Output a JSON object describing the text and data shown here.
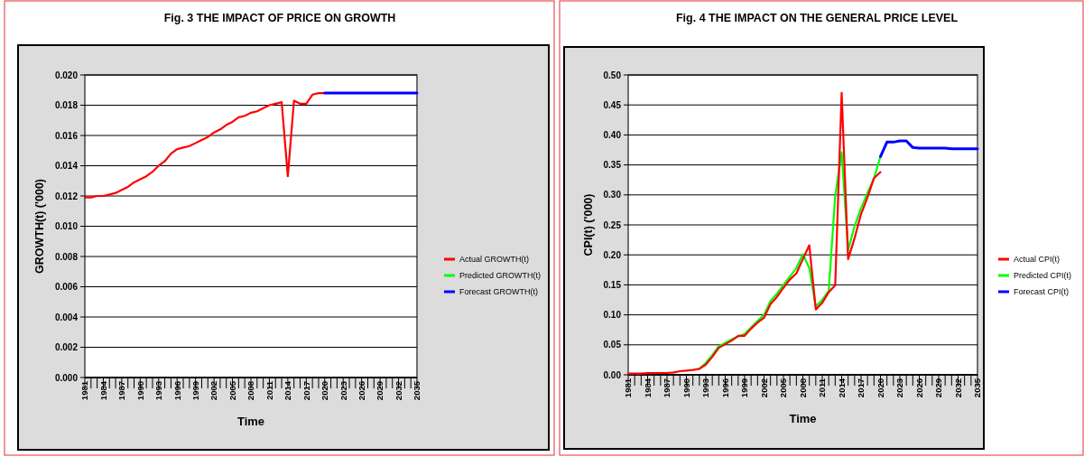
{
  "chart_data": [
    {
      "type": "line",
      "title": "Fig. 3  THE IMPACT OF PRICE ON GROWTH",
      "xlabel": "Time",
      "ylabel": "GROWTH(t) ('000)",
      "categories": [
        "1981",
        null,
        null,
        "1984",
        null,
        null,
        "1987",
        null,
        null,
        "1990",
        null,
        null,
        "1993",
        null,
        null,
        "1996",
        null,
        null,
        "1999",
        null,
        null,
        "2002",
        null,
        null,
        "2005",
        null,
        null,
        "2008",
        null,
        null,
        "2011",
        null,
        null,
        "2014",
        null,
        null,
        "2017",
        null,
        null,
        "2020",
        null,
        null,
        "2023",
        null,
        null,
        "2026",
        null,
        null,
        "2029",
        null,
        null,
        "2032",
        null,
        null,
        "2035"
      ],
      "series": [
        {
          "name": "Actual GROWTH(t)",
          "color": "#ff0000",
          "values": [
            0.0119,
            0.0119,
            0.012,
            0.012,
            0.0121,
            0.0122,
            0.0124,
            0.0126,
            0.0129,
            0.0131,
            0.0133,
            0.0136,
            0.014,
            0.0143,
            0.0148,
            0.0151,
            0.0152,
            0.0153,
            0.0155,
            0.0157,
            0.0159,
            0.0162,
            0.0164,
            0.0167,
            0.0169,
            0.0172,
            0.0173,
            0.0175,
            0.0176,
            0.0178,
            0.018,
            0.0181,
            0.0182,
            0.0133,
            0.0183,
            0.0181,
            0.0181,
            0.0187,
            0.0188,
            0.0188,
            null,
            null,
            null,
            null,
            null,
            null,
            null,
            null,
            null,
            null,
            null,
            null,
            null,
            null,
            null
          ]
        },
        {
          "name": "Predicted GROWTH(t)",
          "color": "#00ff00",
          "values": [
            null,
            null,
            null,
            null,
            null,
            null,
            null,
            null,
            null,
            null,
            null,
            null,
            null,
            null,
            null,
            null,
            null,
            null,
            null,
            null,
            null,
            null,
            null,
            null,
            null,
            null,
            null,
            null,
            null,
            null,
            null,
            null,
            null,
            null,
            null,
            null,
            null,
            null,
            null,
            null,
            null,
            null,
            null,
            null,
            null,
            null,
            null,
            null,
            null,
            null,
            null,
            null,
            null,
            null,
            null
          ]
        },
        {
          "name": "Forecast GROWTH(t)",
          "color": "#0000ff",
          "values": [
            null,
            null,
            null,
            null,
            null,
            null,
            null,
            null,
            null,
            null,
            null,
            null,
            null,
            null,
            null,
            null,
            null,
            null,
            null,
            null,
            null,
            null,
            null,
            null,
            null,
            null,
            null,
            null,
            null,
            null,
            null,
            null,
            null,
            null,
            null,
            null,
            null,
            null,
            null,
            0.0188,
            0.0188,
            0.0188,
            0.0188,
            0.0188,
            0.0188,
            0.0188,
            0.0188,
            0.0188,
            0.0188,
            0.0188,
            0.0188,
            0.0188,
            0.0188,
            0.0188,
            0.0188
          ]
        }
      ],
      "ylim": [
        0,
        0.02
      ],
      "yticks": [
        {
          "value": 0,
          "label": "0.000"
        },
        {
          "value": 0.002,
          "label": "0.002"
        },
        {
          "value": 0.004,
          "label": "0.004"
        },
        {
          "value": 0.006,
          "label": "0.006"
        },
        {
          "value": 0.008,
          "label": "0.008"
        },
        {
          "value": 0.01,
          "label": "0.010"
        },
        {
          "value": 0.012,
          "label": "0.012"
        },
        {
          "value": 0.014,
          "label": "0.014"
        },
        {
          "value": 0.016,
          "label": "0.016"
        },
        {
          "value": 0.018,
          "label": "0.018"
        },
        {
          "value": 0.02,
          "label": "0.020"
        }
      ],
      "grid": "y",
      "legend": "right"
    },
    {
      "type": "line",
      "title": "Fig. 4  THE IMPACT ON THE GENERAL PRICE LEVEL",
      "xlabel": "Time",
      "ylabel": "CPI(t) ('000)",
      "categories": [
        "1981",
        null,
        null,
        "1984",
        null,
        null,
        "1987",
        null,
        null,
        "1990",
        null,
        null,
        "1993",
        null,
        null,
        "1996",
        null,
        null,
        "1999",
        null,
        null,
        "2002",
        null,
        null,
        "2005",
        null,
        null,
        "2008",
        null,
        null,
        "2011",
        null,
        null,
        "2014",
        null,
        null,
        "2017",
        null,
        null,
        "2020",
        null,
        null,
        "2023",
        null,
        null,
        "2026",
        null,
        null,
        "2029",
        null,
        null,
        "2032",
        null,
        null,
        "2035"
      ],
      "series": [
        {
          "name": "Actual CPI(t)",
          "color": "#ff0000",
          "values": [
            0.002,
            0.002,
            0.002,
            0.003,
            0.003,
            0.003,
            0.003,
            0.004,
            0.006,
            0.007,
            0.008,
            0.01,
            0.017,
            0.03,
            0.045,
            0.051,
            0.057,
            0.065,
            0.065,
            0.077,
            0.087,
            0.095,
            0.118,
            0.13,
            0.145,
            0.159,
            0.169,
            0.193,
            0.216,
            0.109,
            0.12,
            0.138,
            0.149,
            0.47,
            0.193,
            0.228,
            0.268,
            0.296,
            0.328,
            0.338,
            null,
            null,
            null,
            null,
            null,
            null,
            null,
            null,
            null,
            null,
            null,
            null,
            null,
            null,
            null
          ]
        },
        {
          "name": "Predicted CPI(t)",
          "color": "#00ff00",
          "values": [
            null,
            null,
            null,
            null,
            null,
            null,
            null,
            null,
            null,
            null,
            null,
            0.01,
            0.02,
            0.033,
            0.048,
            0.053,
            0.059,
            0.064,
            0.068,
            0.079,
            0.09,
            0.1,
            0.123,
            0.135,
            0.15,
            0.164,
            0.178,
            0.201,
            0.178,
            0.114,
            0.125,
            0.14,
            0.298,
            0.371,
            0.208,
            0.248,
            0.278,
            0.303,
            0.328,
            0.364,
            null,
            null,
            null,
            null,
            null,
            null,
            null,
            null,
            null,
            null,
            null,
            null,
            null,
            null,
            null
          ]
        },
        {
          "name": "Forecast CPI(t)",
          "color": "#0000ff",
          "values": [
            null,
            null,
            null,
            null,
            null,
            null,
            null,
            null,
            null,
            null,
            null,
            null,
            null,
            null,
            null,
            null,
            null,
            null,
            null,
            null,
            null,
            null,
            null,
            null,
            null,
            null,
            null,
            null,
            null,
            null,
            null,
            null,
            null,
            null,
            null,
            null,
            null,
            null,
            null,
            0.364,
            0.388,
            0.388,
            0.39,
            0.39,
            0.379,
            0.378,
            0.378,
            0.378,
            0.378,
            0.378,
            0.377,
            0.377,
            0.377,
            0.377,
            0.377
          ]
        }
      ],
      "ylim": [
        0,
        0.5
      ],
      "yticks": [
        {
          "value": 0,
          "label": "0.00"
        },
        {
          "value": 0.05,
          "label": "0.05"
        },
        {
          "value": 0.1,
          "label": "0.10"
        },
        {
          "value": 0.15,
          "label": "0.15"
        },
        {
          "value": 0.2,
          "label": "0.20"
        },
        {
          "value": 0.25,
          "label": "0.25"
        },
        {
          "value": 0.3,
          "label": "0.30"
        },
        {
          "value": 0.35,
          "label": "0.35"
        },
        {
          "value": 0.4,
          "label": "0.40"
        },
        {
          "value": 0.45,
          "label": "0.45"
        },
        {
          "value": 0.5,
          "label": "0.50"
        }
      ],
      "grid": "y",
      "legend": "right"
    }
  ]
}
